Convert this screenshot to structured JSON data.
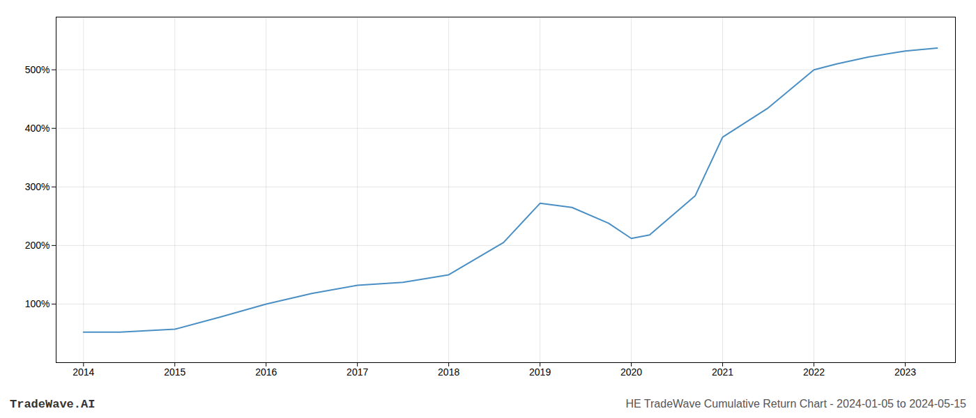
{
  "chart_data": {
    "type": "line",
    "title": "HE TradeWave Cumulative Return Chart - 2024-01-05 to 2024-05-15",
    "annotations": [
      "TradeWave.AI"
    ],
    "x": [
      2014.0,
      2014.4,
      2015.0,
      2015.5,
      2016.0,
      2016.5,
      2017.0,
      2017.5,
      2018.0,
      2018.6,
      2019.0,
      2019.35,
      2019.75,
      2020.0,
      2020.2,
      2020.7,
      2021.0,
      2021.5,
      2022.0,
      2022.25,
      2022.6,
      2023.0,
      2023.35
    ],
    "values": [
      52,
      52,
      57,
      78,
      100,
      118,
      132,
      137,
      150,
      205,
      272,
      265,
      238,
      212,
      218,
      285,
      385,
      435,
      500,
      510,
      522,
      532,
      537
    ],
    "color": "#4a8fc4",
    "xlim": [
      2013.7,
      2023.55
    ],
    "ylim": [
      0,
      590
    ],
    "xticks": [
      2014,
      2015,
      2016,
      2017,
      2018,
      2019,
      2020,
      2021,
      2022,
      2023
    ],
    "yticks": [
      {
        "value": 100,
        "label": "100%"
      },
      {
        "value": 200,
        "label": "200%"
      },
      {
        "value": 300,
        "label": "300%"
      },
      {
        "value": 400,
        "label": "400%"
      },
      {
        "value": 500,
        "label": "500%"
      }
    ],
    "grid": true
  }
}
